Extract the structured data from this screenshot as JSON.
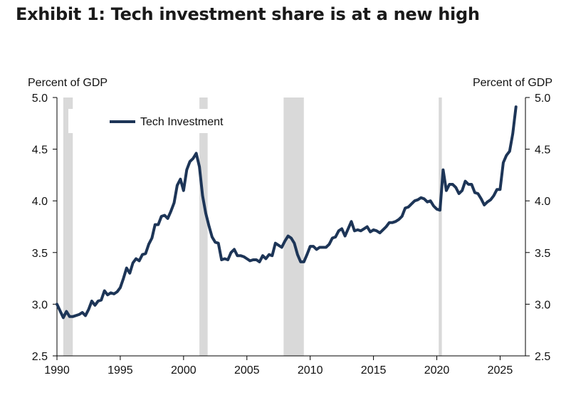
{
  "title": "Exhibit 1:  Tech investment share is at a new high",
  "chart_data": {
    "type": "line",
    "ylabel_left": "Percent of GDP",
    "ylabel_right": "Percent of GDP",
    "xlim": [
      1990,
      2027
    ],
    "ylim": [
      2.5,
      5.0
    ],
    "xticks": [
      1990,
      1995,
      2000,
      2005,
      2010,
      2015,
      2020,
      2025
    ],
    "yticks": [
      "2.5",
      "3.0",
      "3.5",
      "4.0",
      "4.5",
      "5.0"
    ],
    "legend_position": "top-left",
    "grid": false,
    "recessions": [
      [
        1990.5,
        1991.25
      ],
      [
        2001.25,
        2001.9
      ],
      [
        2007.9,
        2009.5
      ],
      [
        2020.15,
        2020.4
      ]
    ],
    "series": [
      {
        "name": "Tech Investment",
        "color": "#1d3557",
        "x": [
          1990.0,
          1990.5,
          1990.75,
          1991.0,
          1991.25,
          1991.75,
          1992.0,
          1992.25,
          1992.5,
          1992.75,
          1993.0,
          1993.25,
          1993.5,
          1993.75,
          1994.0,
          1994.25,
          1994.5,
          1994.75,
          1995.0,
          1995.25,
          1995.5,
          1995.75,
          1996.0,
          1996.25,
          1996.5,
          1996.75,
          1997.0,
          1997.25,
          1997.5,
          1997.75,
          1998.0,
          1998.25,
          1998.5,
          1998.75,
          1999.0,
          1999.25,
          1999.5,
          1999.75,
          2000.0,
          2000.25,
          2000.5,
          2000.75,
          2001.0,
          2001.25,
          2001.5,
          2001.75,
          2002.0,
          2002.25,
          2002.5,
          2002.75,
          2003.0,
          2003.25,
          2003.5,
          2003.75,
          2004.0,
          2004.25,
          2004.5,
          2004.75,
          2005.0,
          2005.25,
          2005.5,
          2005.75,
          2006.0,
          2006.25,
          2006.5,
          2006.75,
          2007.0,
          2007.25,
          2007.5,
          2007.75,
          2008.0,
          2008.25,
          2008.5,
          2008.75,
          2009.0,
          2009.25,
          2009.5,
          2009.75,
          2010.0,
          2010.25,
          2010.5,
          2010.75,
          2011.0,
          2011.25,
          2011.5,
          2011.75,
          2012.0,
          2012.25,
          2012.5,
          2012.75,
          2013.0,
          2013.25,
          2013.5,
          2013.75,
          2014.0,
          2014.25,
          2014.5,
          2014.75,
          2015.0,
          2015.25,
          2015.5,
          2015.75,
          2016.0,
          2016.25,
          2016.5,
          2016.75,
          2017.0,
          2017.25,
          2017.5,
          2017.75,
          2018.0,
          2018.25,
          2018.5,
          2018.75,
          2019.0,
          2019.25,
          2019.5,
          2019.75,
          2020.0,
          2020.25,
          2020.5,
          2020.75,
          2021.0,
          2021.25,
          2021.5,
          2021.75,
          2022.0,
          2022.25,
          2022.5,
          2022.75,
          2023.0,
          2023.25,
          2023.5,
          2023.75,
          2024.0,
          2024.25,
          2024.5,
          2024.75,
          2025.0,
          2025.25,
          2025.5,
          2025.75,
          2026.0,
          2026.25
        ],
        "values": [
          3.0,
          2.87,
          2.93,
          2.88,
          2.88,
          2.9,
          2.92,
          2.89,
          2.95,
          3.03,
          2.99,
          3.03,
          3.04,
          3.13,
          3.09,
          3.11,
          3.1,
          3.12,
          3.16,
          3.25,
          3.35,
          3.3,
          3.4,
          3.44,
          3.42,
          3.48,
          3.49,
          3.58,
          3.64,
          3.77,
          3.77,
          3.85,
          3.86,
          3.83,
          3.9,
          3.98,
          4.15,
          4.21,
          4.1,
          4.3,
          4.38,
          4.41,
          4.46,
          4.33,
          4.05,
          3.88,
          3.76,
          3.65,
          3.6,
          3.59,
          3.43,
          3.44,
          3.43,
          3.5,
          3.53,
          3.47,
          3.47,
          3.46,
          3.44,
          3.42,
          3.43,
          3.43,
          3.41,
          3.47,
          3.44,
          3.48,
          3.47,
          3.59,
          3.57,
          3.55,
          3.61,
          3.66,
          3.64,
          3.59,
          3.48,
          3.41,
          3.41,
          3.48,
          3.56,
          3.56,
          3.53,
          3.55,
          3.55,
          3.55,
          3.58,
          3.64,
          3.65,
          3.71,
          3.73,
          3.66,
          3.73,
          3.8,
          3.71,
          3.72,
          3.71,
          3.73,
          3.75,
          3.7,
          3.72,
          3.71,
          3.69,
          3.72,
          3.75,
          3.79,
          3.79,
          3.8,
          3.82,
          3.85,
          3.93,
          3.94,
          3.97,
          4.0,
          4.01,
          4.03,
          4.02,
          3.99,
          4.0,
          3.95,
          3.92,
          3.91,
          4.3,
          4.1,
          4.16,
          4.16,
          4.13,
          4.07,
          4.1,
          4.19,
          4.16,
          4.16,
          4.08,
          4.07,
          4.02,
          3.96,
          3.99,
          4.01,
          4.05,
          4.11,
          4.11,
          4.37,
          4.44,
          4.48,
          4.65,
          4.91
        ]
      }
    ]
  }
}
